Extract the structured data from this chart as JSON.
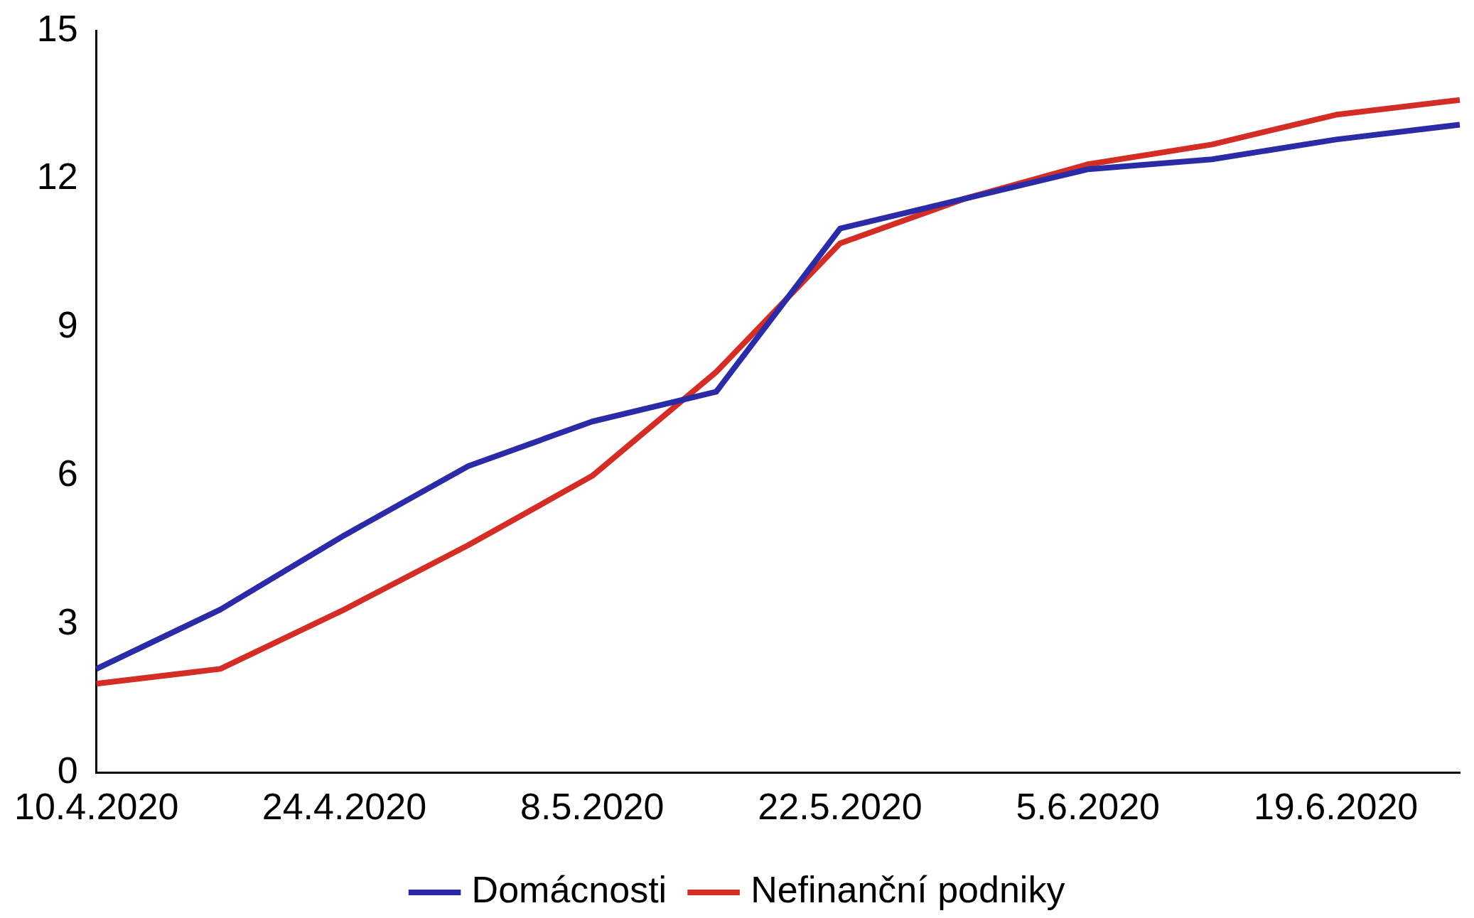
{
  "chart_data": {
    "type": "line",
    "categories": [
      "10.4.2020",
      null,
      "24.4.2020",
      null,
      "8.5.2020",
      null,
      "22.5.2020",
      null,
      "5.6.2020",
      null,
      "19.6.2020",
      null
    ],
    "series": [
      {
        "name": "Domácnosti",
        "color": "#2b2ba8",
        "values": [
          2.1,
          3.3,
          4.8,
          6.2,
          7.1,
          7.7,
          11.0,
          11.6,
          12.2,
          12.4,
          12.8,
          13.1
        ]
      },
      {
        "name": "Nefinanční podniky",
        "color": "#d42d26",
        "values": [
          1.8,
          2.1,
          3.3,
          4.6,
          6.0,
          8.1,
          10.7,
          11.6,
          12.3,
          12.7,
          13.3,
          13.6
        ]
      }
    ],
    "ylim": [
      0,
      15
    ],
    "yticks": [
      0,
      3,
      6,
      9,
      12,
      15
    ],
    "grid": false,
    "legend": "bottom",
    "marker": "none",
    "line_style": "solid"
  }
}
